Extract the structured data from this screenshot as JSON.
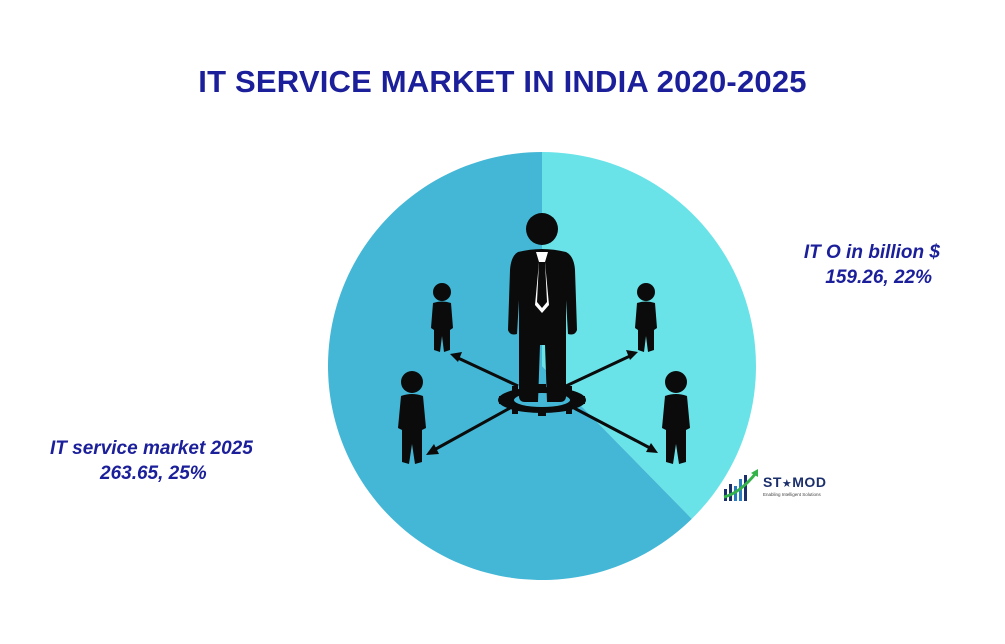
{
  "chart_data": {
    "type": "pie",
    "title": "IT SERVICE MARKET IN INDIA 2020-2025",
    "slices": [
      {
        "name": "IT O in billion $",
        "value": 159.26,
        "percent_label": "22%",
        "color": "#6ae3e8"
      },
      {
        "name": "IT service market  2025",
        "value": 263.65,
        "percent_label": "25%",
        "color": "#44b7d6"
      }
    ],
    "start_angle_deg": 0,
    "direction": "clockwise"
  },
  "labels": {
    "ito_name": "IT O in billion $",
    "ito_values": "159.26,   22%",
    "its_name": "IT service market  2025",
    "its_values": "263.65,   25%"
  },
  "logo": {
    "text_1": "ST",
    "star": "★",
    "text_2": "MOD",
    "tagline": "Enabling Intelligent Solutions"
  },
  "icon": "business-people-network-icon",
  "colors": {
    "title": "#1b1f9a",
    "figure": "#0b0b0b"
  }
}
